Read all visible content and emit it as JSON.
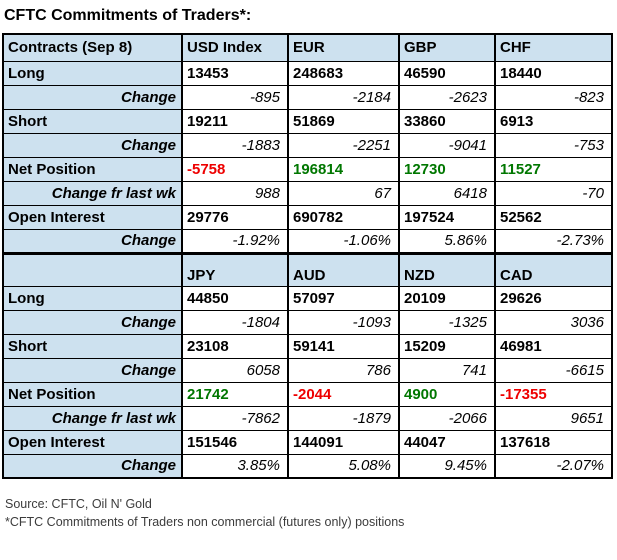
{
  "title": "CFTC Commitments of Traders*:",
  "colors": {
    "header_bg": "#cde1ef",
    "border": "#000000",
    "positive": "#007700",
    "negative": "#ee0000"
  },
  "chart_data": {
    "type": "table",
    "title": "CFTC Commitments of Traders*:",
    "sections": [
      {
        "corner_label": "Contracts (Sep 8)",
        "columns": [
          "USD Index",
          "EUR",
          "GBP",
          "CHF"
        ],
        "rows": [
          {
            "label": "Long",
            "kind": "metric",
            "values": [
              "13453",
              "248683",
              "46590",
              "18440"
            ]
          },
          {
            "label": "Change",
            "kind": "change",
            "values": [
              "-895",
              "-2184",
              "-2623",
              "-823"
            ]
          },
          {
            "label": "Short",
            "kind": "metric",
            "values": [
              "19211",
              "51869",
              "33860",
              "6913"
            ]
          },
          {
            "label": "Change",
            "kind": "change",
            "values": [
              "-1883",
              "-2251",
              "-9041",
              "-753"
            ]
          },
          {
            "label": "Net Position",
            "kind": "net",
            "values": [
              "-5758",
              "196814",
              "12730",
              "11527"
            ]
          },
          {
            "label": "Change fr last wk",
            "kind": "change",
            "values": [
              "988",
              "67",
              "6418",
              "-70"
            ]
          },
          {
            "label": "Open Interest",
            "kind": "metric",
            "values": [
              "29776",
              "690782",
              "197524",
              "52562"
            ]
          },
          {
            "label": "Change",
            "kind": "change",
            "values": [
              "-1.92%",
              "-1.06%",
              "5.86%",
              "-2.73%"
            ]
          }
        ]
      },
      {
        "corner_label": "",
        "columns": [
          "JPY",
          "AUD",
          "NZD",
          "CAD"
        ],
        "rows": [
          {
            "label": "Long",
            "kind": "metric",
            "values": [
              "44850",
              "57097",
              "20109",
              "29626"
            ]
          },
          {
            "label": "Change",
            "kind": "change",
            "values": [
              "-1804",
              "-1093",
              "-1325",
              "3036"
            ]
          },
          {
            "label": "Short",
            "kind": "metric",
            "values": [
              "23108",
              "59141",
              "15209",
              "46981"
            ]
          },
          {
            "label": "Change",
            "kind": "change",
            "values": [
              "6058",
              "786",
              "741",
              "-6615"
            ]
          },
          {
            "label": "Net Position",
            "kind": "net",
            "values": [
              "21742",
              "-2044",
              "4900",
              "-17355"
            ]
          },
          {
            "label": "Change fr last wk",
            "kind": "change",
            "values": [
              "-7862",
              "-1879",
              "-2066",
              "9651"
            ]
          },
          {
            "label": "Open Interest",
            "kind": "metric",
            "values": [
              "151546",
              "144091",
              "44047",
              "137618"
            ]
          },
          {
            "label": "Change",
            "kind": "change",
            "values": [
              "3.85%",
              "5.08%",
              "9.45%",
              "-2.07%"
            ]
          }
        ]
      }
    ]
  },
  "footer": {
    "source": "Source: CFTC, Oil N' Gold",
    "note": "*CFTC Commitments of Traders non commercial (futures only) positions"
  }
}
